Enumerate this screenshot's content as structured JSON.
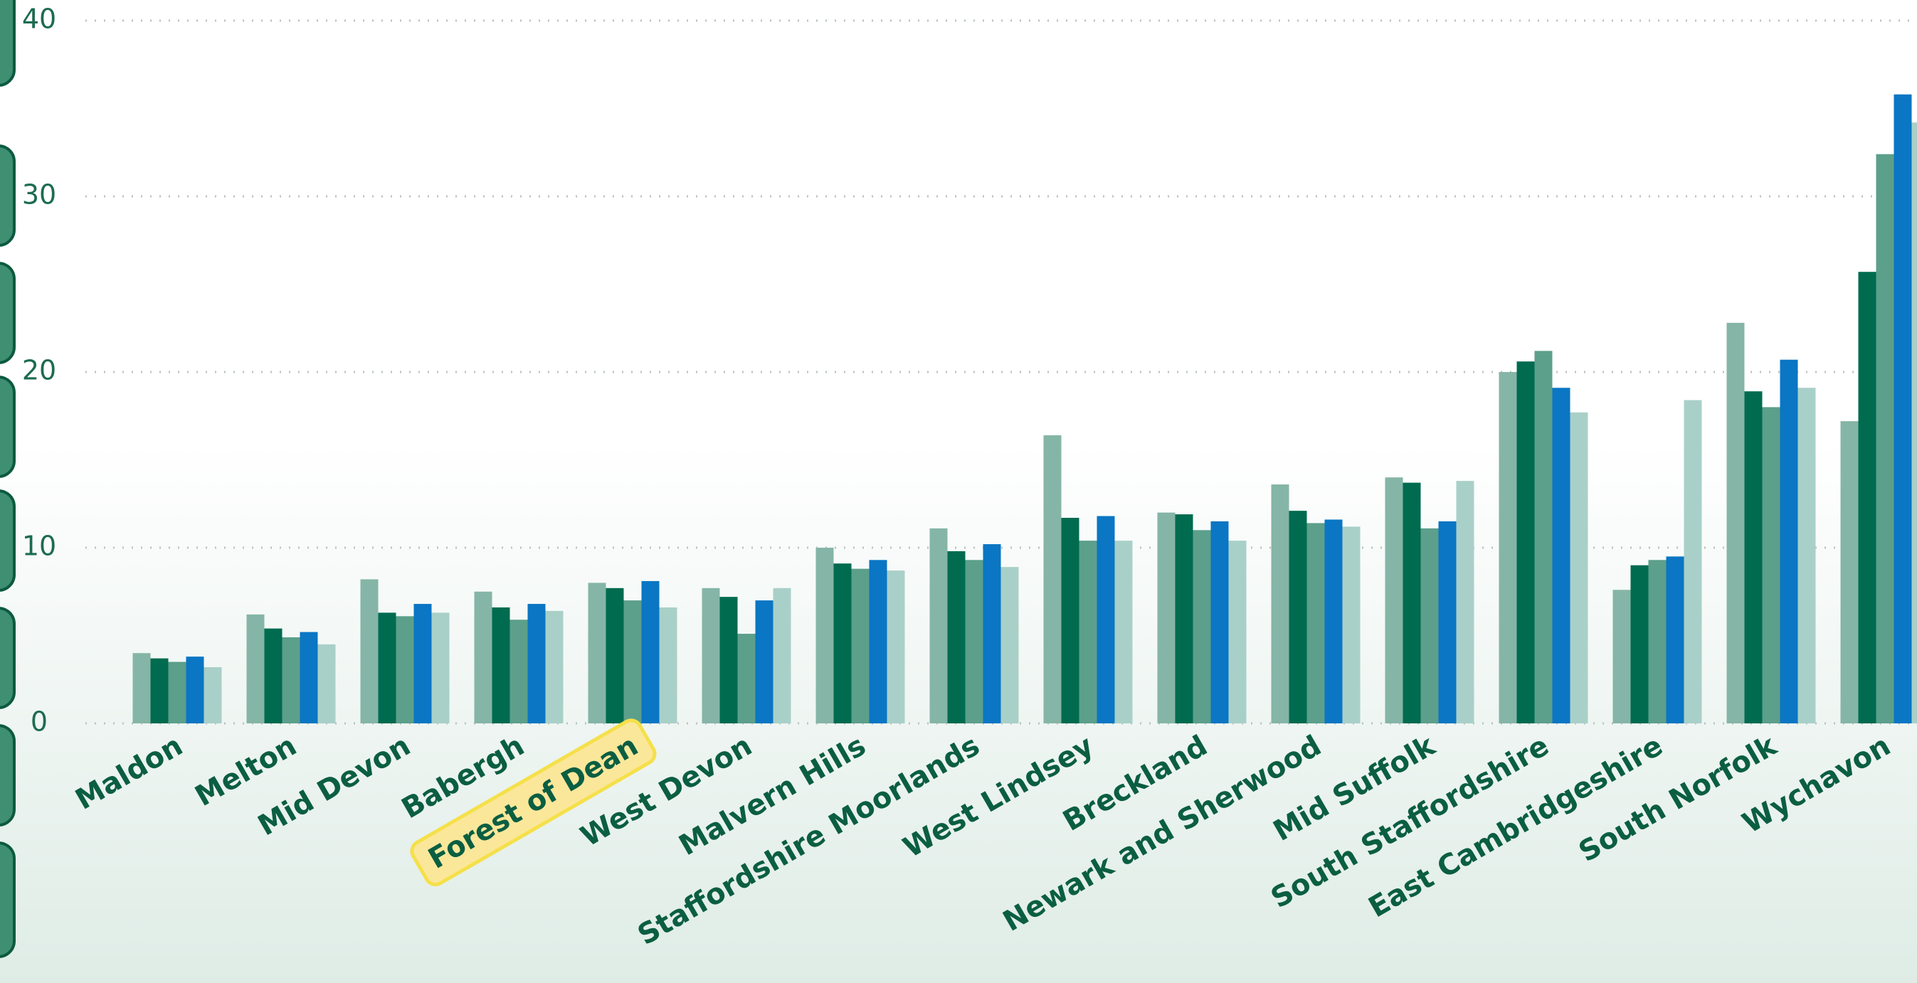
{
  "chart_data": {
    "type": "bar",
    "categories": [
      "Maldon",
      "Melton",
      "Mid Devon",
      "Babergh",
      "Forest of Dean",
      "West Devon",
      "Malvern Hills",
      "Staffordshire Moorlands",
      "West Lindsey",
      "Breckland",
      "Newark and Sherwood",
      "Mid Suffolk",
      "South Staffordshire",
      "East Cambridgeshire",
      "South Norfolk",
      "Wychavon"
    ],
    "series": [
      {
        "color": "#85b5a6",
        "values": [
          4.0,
          6.2,
          8.2,
          7.5,
          8.0,
          7.7,
          10.0,
          11.1,
          16.4,
          12.0,
          13.6,
          14.0,
          20.0,
          7.6,
          22.8,
          17.2
        ]
      },
      {
        "color": "#006b4f",
        "values": [
          3.7,
          5.4,
          6.3,
          6.6,
          7.7,
          7.2,
          9.1,
          9.8,
          11.7,
          11.9,
          12.1,
          13.7,
          20.6,
          9.0,
          18.9,
          25.7
        ]
      },
      {
        "color": "#5c9f8b",
        "values": [
          3.5,
          4.9,
          6.1,
          5.9,
          7.0,
          5.1,
          8.8,
          9.3,
          10.4,
          11.0,
          11.4,
          11.1,
          21.2,
          9.3,
          18.0,
          32.4
        ]
      },
      {
        "color": "#0a76c4",
        "values": [
          3.8,
          5.2,
          6.8,
          6.8,
          8.1,
          7.0,
          9.3,
          10.2,
          11.8,
          11.5,
          11.6,
          11.5,
          19.1,
          9.5,
          20.7,
          35.8
        ]
      },
      {
        "color": "#a9d0c8",
        "values": [
          3.2,
          4.5,
          6.3,
          6.4,
          6.6,
          7.7,
          8.7,
          8.9,
          10.4,
          10.4,
          11.2,
          13.8,
          17.7,
          18.4,
          19.1,
          34.2
        ]
      }
    ],
    "ylim": [
      0,
      40
    ],
    "yticks": [
      0,
      10,
      20,
      30,
      40
    ],
    "grid": true,
    "highlight_category": "Forest of Dean"
  }
}
